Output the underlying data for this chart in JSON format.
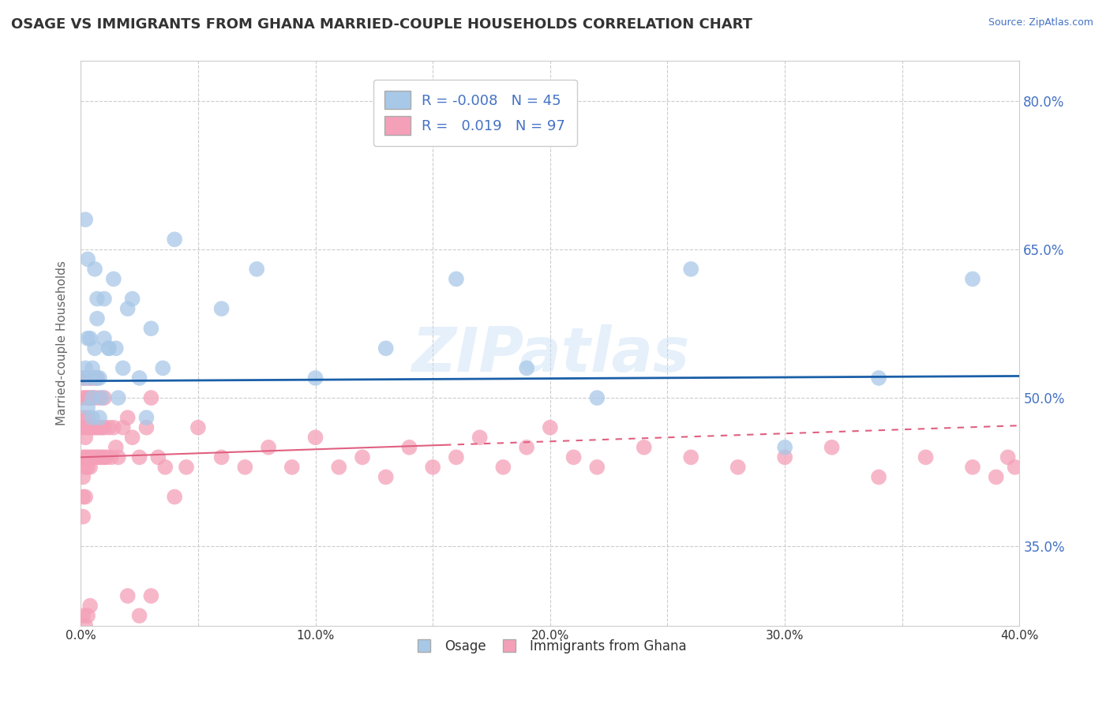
{
  "title": "OSAGE VS IMMIGRANTS FROM GHANA MARRIED-COUPLE HOUSEHOLDS CORRELATION CHART",
  "source": "Source: ZipAtlas.com",
  "ylabel": "Married-couple Households",
  "xlim": [
    0.0,
    0.4
  ],
  "ylim": [
    0.27,
    0.84
  ],
  "xticks": [
    0.0,
    0.05,
    0.1,
    0.15,
    0.2,
    0.25,
    0.3,
    0.35,
    0.4
  ],
  "xticklabels": [
    "0.0%",
    "",
    "10.0%",
    "",
    "20.0%",
    "",
    "30.0%",
    "",
    "40.0%"
  ],
  "yticks": [
    0.35,
    0.5,
    0.65,
    0.8
  ],
  "yticklabels": [
    "35.0%",
    "50.0%",
    "65.0%",
    "80.0%"
  ],
  "grid_color": "#cccccc",
  "background_color": "#ffffff",
  "legend_R1": "-0.008",
  "legend_N1": "45",
  "legend_R2": "0.019",
  "legend_N2": "97",
  "blue_color": "#a8c8e8",
  "pink_color": "#f4a0b8",
  "blue_line_color": "#1a5fa8",
  "pink_line_color": "#e06080",
  "watermark": "ZIPatlas",
  "legend_label1": "Osage",
  "legend_label2": "Immigrants from Ghana",
  "osage_x": [
    0.001,
    0.002,
    0.003,
    0.004,
    0.005,
    0.006,
    0.007,
    0.008,
    0.01,
    0.012,
    0.014,
    0.016,
    0.02,
    0.025,
    0.03,
    0.035,
    0.04,
    0.003,
    0.004,
    0.005,
    0.006,
    0.007,
    0.008,
    0.01,
    0.015,
    0.018,
    0.022,
    0.028,
    0.06,
    0.075,
    0.1,
    0.13,
    0.16,
    0.19,
    0.22,
    0.26,
    0.3,
    0.34,
    0.38,
    0.002,
    0.003,
    0.005,
    0.007,
    0.009,
    0.012
  ],
  "osage_y": [
    0.52,
    0.68,
    0.64,
    0.56,
    0.53,
    0.55,
    0.58,
    0.52,
    0.6,
    0.55,
    0.62,
    0.5,
    0.59,
    0.52,
    0.57,
    0.53,
    0.66,
    0.49,
    0.52,
    0.5,
    0.63,
    0.6,
    0.48,
    0.56,
    0.55,
    0.53,
    0.6,
    0.48,
    0.59,
    0.63,
    0.52,
    0.55,
    0.62,
    0.53,
    0.5,
    0.63,
    0.45,
    0.52,
    0.62,
    0.53,
    0.56,
    0.48,
    0.52,
    0.5,
    0.55
  ],
  "ghana_x": [
    0.001,
    0.001,
    0.001,
    0.001,
    0.001,
    0.001,
    0.001,
    0.001,
    0.002,
    0.002,
    0.002,
    0.002,
    0.002,
    0.002,
    0.002,
    0.003,
    0.003,
    0.003,
    0.003,
    0.003,
    0.003,
    0.004,
    0.004,
    0.004,
    0.004,
    0.004,
    0.005,
    0.005,
    0.005,
    0.005,
    0.006,
    0.006,
    0.006,
    0.006,
    0.007,
    0.007,
    0.007,
    0.008,
    0.008,
    0.008,
    0.009,
    0.009,
    0.01,
    0.01,
    0.01,
    0.011,
    0.012,
    0.013,
    0.014,
    0.015,
    0.016,
    0.018,
    0.02,
    0.022,
    0.025,
    0.028,
    0.03,
    0.033,
    0.036,
    0.04,
    0.045,
    0.05,
    0.06,
    0.07,
    0.08,
    0.09,
    0.1,
    0.11,
    0.12,
    0.13,
    0.14,
    0.15,
    0.16,
    0.17,
    0.18,
    0.19,
    0.2,
    0.21,
    0.22,
    0.24,
    0.26,
    0.28,
    0.3,
    0.32,
    0.34,
    0.36,
    0.38,
    0.39,
    0.395,
    0.398,
    0.02,
    0.025,
    0.03,
    0.001,
    0.002,
    0.003,
    0.004
  ],
  "ghana_y": [
    0.44,
    0.47,
    0.5,
    0.42,
    0.38,
    0.52,
    0.48,
    0.4,
    0.44,
    0.47,
    0.5,
    0.43,
    0.4,
    0.52,
    0.46,
    0.44,
    0.47,
    0.5,
    0.43,
    0.52,
    0.48,
    0.44,
    0.47,
    0.5,
    0.43,
    0.52,
    0.44,
    0.47,
    0.5,
    0.52,
    0.44,
    0.47,
    0.5,
    0.52,
    0.44,
    0.47,
    0.52,
    0.44,
    0.47,
    0.5,
    0.44,
    0.47,
    0.44,
    0.47,
    0.5,
    0.44,
    0.47,
    0.44,
    0.47,
    0.45,
    0.44,
    0.47,
    0.48,
    0.46,
    0.44,
    0.47,
    0.5,
    0.44,
    0.43,
    0.4,
    0.43,
    0.47,
    0.44,
    0.43,
    0.45,
    0.43,
    0.46,
    0.43,
    0.44,
    0.42,
    0.45,
    0.43,
    0.44,
    0.46,
    0.43,
    0.45,
    0.47,
    0.44,
    0.43,
    0.45,
    0.44,
    0.43,
    0.44,
    0.45,
    0.42,
    0.44,
    0.43,
    0.42,
    0.44,
    0.43,
    0.3,
    0.28,
    0.3,
    0.28,
    0.27,
    0.28,
    0.29
  ]
}
